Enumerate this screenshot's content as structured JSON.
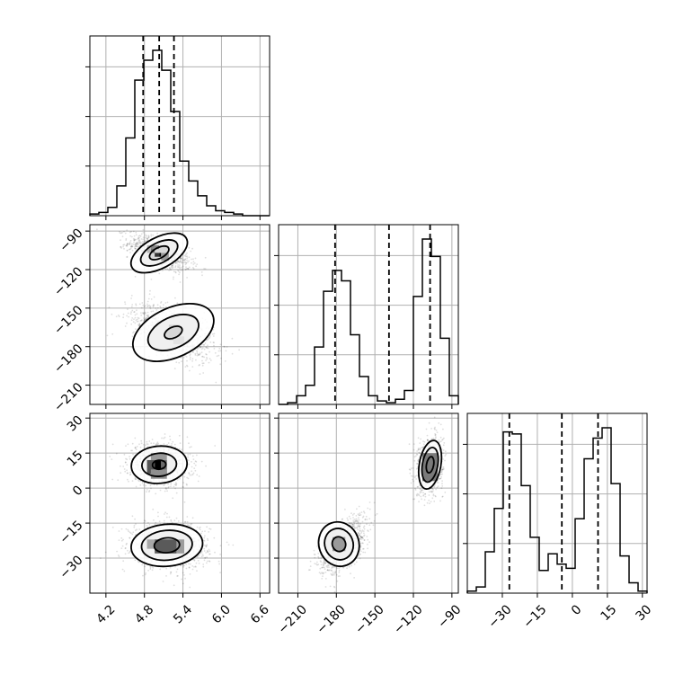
{
  "chart_data": {
    "type": "corner",
    "grid": true,
    "params": [
      {
        "id": "p0",
        "range": [
          3.95,
          6.75
        ],
        "ticks": [
          4.2,
          4.8,
          5.4,
          6.0,
          6.6
        ],
        "tick_labels": [
          "4.2",
          "4.8",
          "5.4",
          "6.0",
          "6.6"
        ],
        "hist_bins": [
          3.95,
          4.09,
          4.23,
          4.37,
          4.51,
          4.65,
          4.79,
          4.93,
          5.07,
          5.21,
          5.35,
          5.49,
          5.63,
          5.77,
          5.91,
          6.05,
          6.19,
          6.33,
          6.47,
          6.61,
          6.75
        ],
        "hist_counts": [
          1,
          2,
          5,
          18,
          47,
          82,
          94,
          100,
          88,
          63,
          33,
          21,
          12,
          6,
          3,
          2,
          1,
          0,
          0,
          0
        ],
        "quantiles": [
          4.78,
          5.03,
          5.26
        ]
      },
      {
        "id": "p1",
        "range": [
          -225,
          -85
        ],
        "ticks": [
          -210,
          -180,
          -150,
          -120,
          -90
        ],
        "tick_labels": [
          "−210",
          "−180",
          "−150",
          "−120",
          "−90"
        ],
        "hist_bins": [
          -225,
          -218,
          -211,
          -204,
          -197,
          -190,
          -183,
          -176,
          -169,
          -162,
          -155,
          -148,
          -141,
          -134,
          -127,
          -120,
          -113,
          -106,
          -99,
          -92,
          -85
        ],
        "hist_counts": [
          0,
          1,
          5,
          11,
          33,
          65,
          77,
          71,
          40,
          16,
          5,
          2,
          1,
          3,
          8,
          62,
          95,
          85,
          38,
          5
        ],
        "quantiles": [
          -181,
          -139,
          -107
        ]
      },
      {
        "id": "p2",
        "range": [
          -45,
          32
        ],
        "ticks": [
          -30,
          -15,
          0,
          15,
          30
        ],
        "tick_labels": [
          "−30",
          "−15",
          "0",
          "15",
          "30"
        ],
        "hist_bins": [
          -45,
          -41.15,
          -37.3,
          -33.45,
          -29.6,
          -25.75,
          -21.9,
          -18.05,
          -14.2,
          -10.35,
          -6.5,
          -2.65,
          1.2,
          5.05,
          8.9,
          12.75,
          16.6,
          20.45,
          24.3,
          28.15,
          32
        ],
        "hist_counts": [
          1,
          3,
          20,
          41,
          78,
          77,
          52,
          27,
          11,
          19,
          14,
          12,
          36,
          65,
          75,
          80,
          53,
          18,
          5,
          1
        ],
        "quantiles": [
          -27,
          -4.5,
          11
        ]
      }
    ],
    "scatter_panels": [
      {
        "x": "p0",
        "y": "p1",
        "clusters": [
          {
            "center": [
              5.03,
              -107
            ],
            "sx": 0.24,
            "sy": 7,
            "rho": -0.55,
            "n": 950
          },
          {
            "center": [
              5.25,
              -169
            ],
            "sx": 0.32,
            "sy": 11,
            "rho": -0.5,
            "n": 1050
          }
        ],
        "contours": [
          {
            "center": [
              5.03,
              -107
            ],
            "rx": 0.3,
            "ry": 7.5,
            "angle_deg": -28,
            "scales": [
              0.55,
              1.05,
              1.6
            ]
          },
          {
            "center": [
              5.25,
              -169
            ],
            "rx": 0.42,
            "ry": 12,
            "angle_deg": -25,
            "scales": [
              0.35,
              1.0,
              1.6
            ]
          }
        ],
        "density_cells": [
          {
            "x": [
              5.03,
              5.06
            ],
            "y": [
              -110,
              -107
            ],
            "shade": "#000000"
          },
          {
            "x": [
              4.96,
              5.03
            ],
            "y": [
              -110,
              -107
            ],
            "shade": "#333333"
          },
          {
            "x": [
              4.9,
              4.96
            ],
            "y": [
              -107,
              -101
            ],
            "shade": "#707070"
          },
          {
            "x": [
              4.9,
              5.03
            ],
            "y": [
              -104,
              -101
            ],
            "shade": "#888888"
          },
          {
            "x": [
              5.06,
              5.18
            ],
            "y": [
              -113,
              -107
            ],
            "shade": "#9a9a9a"
          },
          {
            "x": [
              4.84,
              4.9
            ],
            "y": [
              -107,
              -101
            ],
            "shade": "#b5b5b5"
          },
          {
            "x": [
              5.18,
              5.35
            ],
            "y": [
              -175,
              -163
            ],
            "shade": "#d6d6d6"
          },
          {
            "x": [
              5.25,
              5.42
            ],
            "y": [
              -178,
              -172
            ],
            "shade": "#e2e2e2"
          }
        ]
      },
      {
        "x": "p0",
        "y": "p2",
        "clusters": [
          {
            "center": [
              5.03,
              10
            ],
            "sx": 0.24,
            "sy": 4.5,
            "rho": -0.1,
            "n": 1000
          },
          {
            "center": [
              5.2,
              -24.5
            ],
            "sx": 0.3,
            "sy": 5,
            "rho": -0.1,
            "n": 1000
          }
        ],
        "contours": [
          {
            "center": [
              5.03,
              10
            ],
            "rx": 0.3,
            "ry": 5.5,
            "angle_deg": -5,
            "scales": [
              0.35,
              0.9,
              1.45
            ]
          },
          {
            "center": [
              5.15,
              -24.5
            ],
            "rx": 0.36,
            "ry": 5.8,
            "angle_deg": -5,
            "scales": [
              0.55,
              1.1,
              1.55
            ]
          }
        ],
        "density_cells": [
          {
            "x": [
              4.96,
              5.06
            ],
            "y": [
              8,
              12
            ],
            "shade": "#000000"
          },
          {
            "x": [
              4.84,
              4.96
            ],
            "y": [
              6,
              12
            ],
            "shade": "#555555"
          },
          {
            "x": [
              5.06,
              5.15
            ],
            "y": [
              6,
              12
            ],
            "shade": "#6a6a6a"
          },
          {
            "x": [
              4.9,
              5.15
            ],
            "y": [
              4,
              8
            ],
            "shade": "#8f8f8f"
          },
          {
            "x": [
              4.9,
              5.15
            ],
            "y": [
              12,
              15
            ],
            "shade": "#999999"
          },
          {
            "x": [
              4.96,
              5.3
            ],
            "y": [
              -28,
              -22
            ],
            "shade": "#5a5a5a"
          },
          {
            "x": [
              5.3,
              5.42
            ],
            "y": [
              -28,
              -22
            ],
            "shade": "#9c9c9c"
          },
          {
            "x": [
              4.84,
              4.96
            ],
            "y": [
              -26,
              -22
            ],
            "shade": "#a8a8a8"
          }
        ]
      },
      {
        "x": "p1",
        "y": "p2",
        "clusters": [
          {
            "center": [
              -107,
              10
            ],
            "sx": 5,
            "sy": 6,
            "rho": 0.2,
            "n": 1000
          },
          {
            "center": [
              -175,
              -24.5
            ],
            "sx": 9,
            "sy": 6,
            "rho": 0.55,
            "n": 1000
          }
        ],
        "contours": [
          {
            "center": [
              -107,
              10
            ],
            "rx": 8,
            "ry": 10,
            "angle_deg": 10,
            "scales": [
              0.35,
              0.75,
              1.05
            ]
          },
          {
            "center": [
              -178,
              -24
            ],
            "rx": 13,
            "ry": 8,
            "angle_deg": -20,
            "scales": [
              0.4,
              0.85,
              1.2
            ]
          }
        ],
        "density_cells": [
          {
            "x": [
              -110,
              -104
            ],
            "y": [
              7,
              13
            ],
            "shade": "#000000"
          },
          {
            "x": [
              -113,
              -101
            ],
            "y": [
              3,
              15
            ],
            "shade": "#7a7a7a"
          },
          {
            "x": [
              -183,
              -173
            ],
            "y": [
              -27,
              -21
            ],
            "shade": "#9a9a9a"
          }
        ]
      }
    ]
  }
}
